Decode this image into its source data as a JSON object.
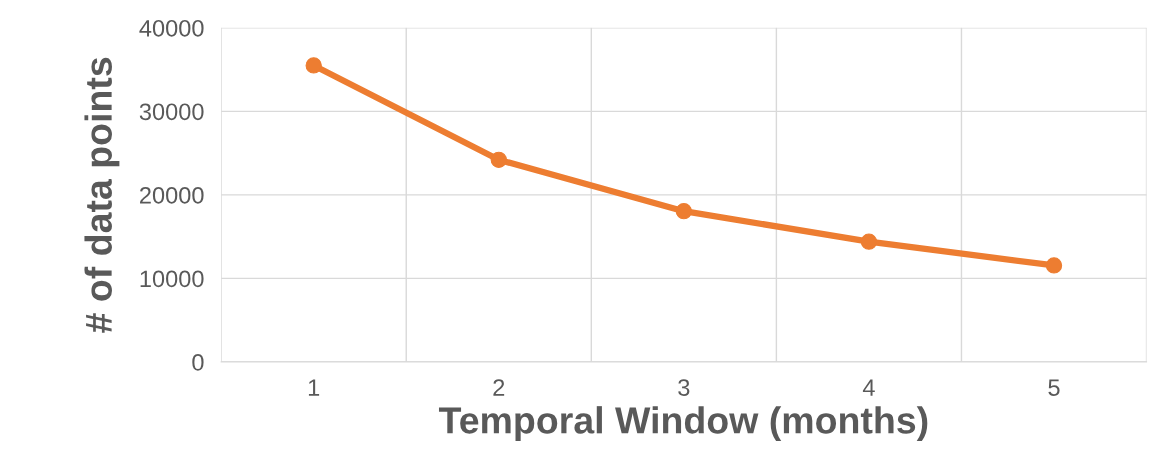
{
  "chart_data": {
    "type": "line",
    "xlabel": "Temporal Window (months)",
    "ylabel": "# of data points",
    "categories": [
      "1",
      "2",
      "3",
      "4",
      "5"
    ],
    "series": [
      {
        "color": "#ed7d31",
        "values": [
          35500,
          24200,
          18050,
          14400,
          11550
        ]
      }
    ],
    "ylim": [
      0,
      40000
    ],
    "yticks": [
      0,
      10000,
      20000,
      30000,
      40000
    ],
    "grid": true,
    "marker": "circle",
    "line_style": "solid"
  }
}
